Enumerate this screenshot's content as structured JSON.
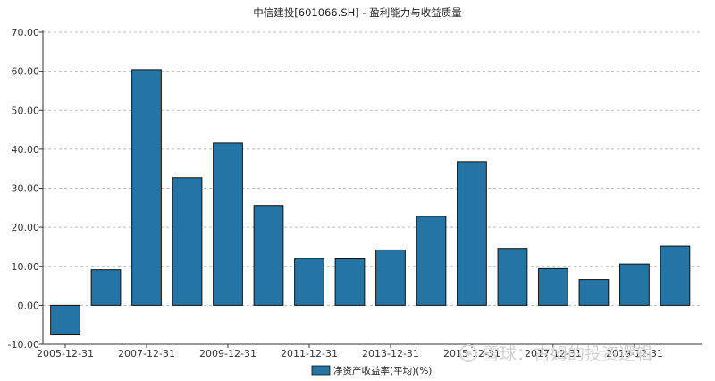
{
  "chart_data": {
    "type": "bar",
    "title": "中信建投[601066.SH] - 盈利能力与收益质量",
    "categories": [
      "2005-12-31",
      "2006-12-31",
      "2007-12-31",
      "2008-12-31",
      "2009-12-31",
      "2010-12-31",
      "2011-12-31",
      "2012-12-31",
      "2013-12-31",
      "2014-12-31",
      "2015-12-31",
      "2016-12-31",
      "2017-12-31",
      "2018-12-31",
      "2019-12-31",
      "2020-12-31"
    ],
    "x_tick_labels": [
      "2005-12-31",
      "2007-12-31",
      "2009-12-31",
      "2011-12-31",
      "2013-12-31",
      "2015-12-31",
      "2017-12-31",
      "2019-12-31"
    ],
    "y_tick_labels": [
      "70.00",
      "60.00",
      "50.00",
      "40.00",
      "30.00",
      "20.00",
      "10.00",
      "0.00",
      "-10.00"
    ],
    "series": [
      {
        "name": "净资产收益率(平均)(%)",
        "values": [
          -7.6,
          9.1,
          60.4,
          32.7,
          41.6,
          25.6,
          12.0,
          11.9,
          14.2,
          22.8,
          36.8,
          14.6,
          9.4,
          6.6,
          10.6,
          15.2
        ]
      }
    ],
    "ylim": [
      -10,
      70
    ],
    "grid": true,
    "legend_position": "bottom-center",
    "colors": {
      "bar": "#2474a6",
      "bar_edge": "#111111",
      "grid": "#bbbbbb"
    }
  },
  "watermark": "雪球：古姆的投资逻辑"
}
